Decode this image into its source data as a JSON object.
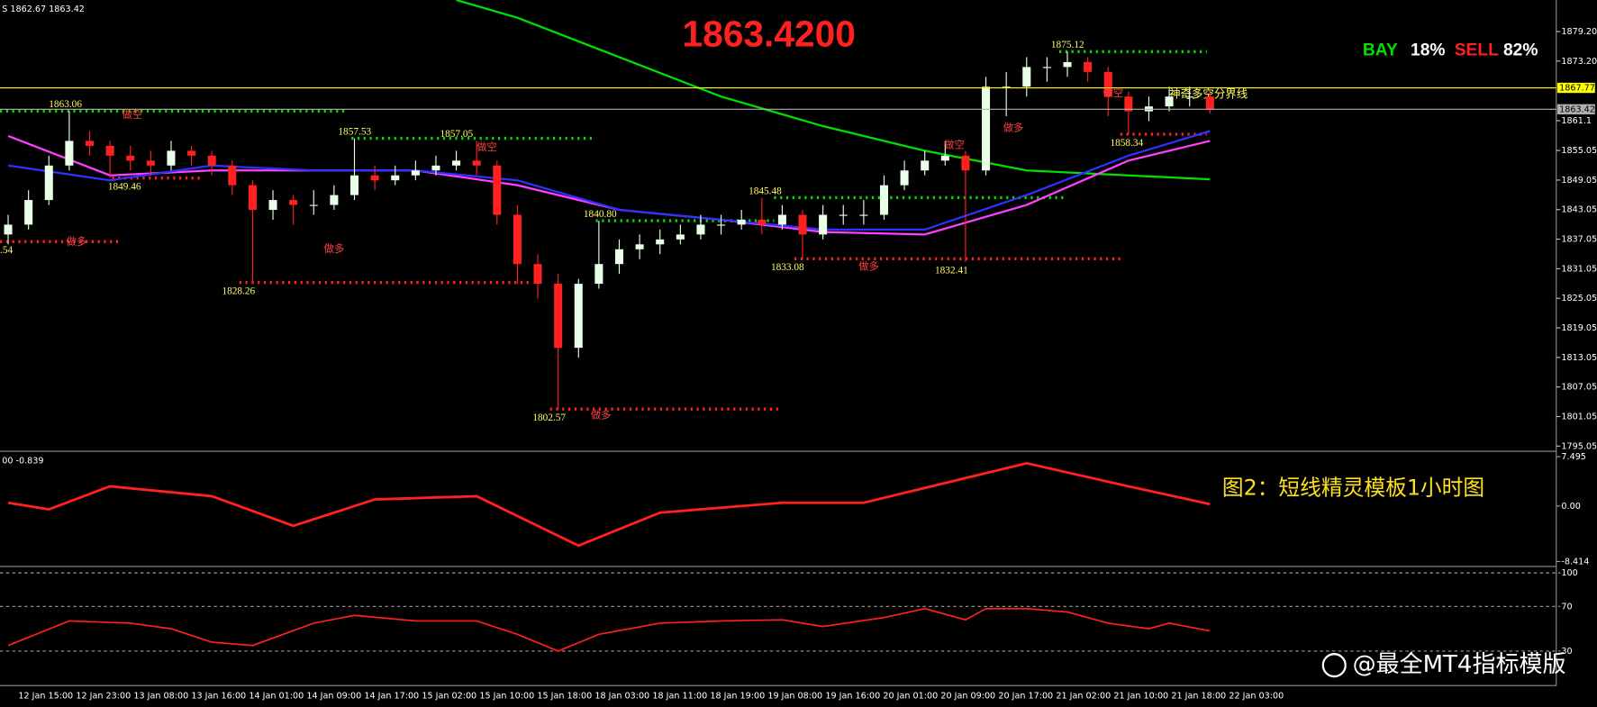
{
  "header": {
    "symbol_info": "S 1862.67 1863.42",
    "price": "1863.4200",
    "bay": "BAY",
    "bay_pct": "18%",
    "sell": "SELL",
    "sell_pct": "82%",
    "boundary": "神奇多空分界线",
    "caption": "图2：短线精灵模板1小时图",
    "watermark": "@最全MT4指标模版"
  },
  "chart_data": {
    "type": "candlestick",
    "open": [
      1838,
      1840,
      1845,
      1852,
      1857,
      1856,
      1854,
      1853,
      1852,
      1855,
      1854,
      1852,
      1848,
      1843,
      1845,
      1844,
      1844,
      1846,
      1850,
      1849,
      1850,
      1851,
      1852,
      1853,
      1852,
      1842,
      1832,
      1828,
      1815,
      1828,
      1832,
      1835,
      1836,
      1837,
      1838,
      1840,
      1840,
      1841,
      1840,
      1842,
      1838,
      1842,
      1842,
      1842,
      1848,
      1851,
      1853,
      1854,
      1851,
      1868,
      1868,
      1872,
      1872,
      1873,
      1871,
      1866,
      1863,
      1864,
      1866,
      1866
    ],
    "high": [
      1842,
      1847,
      1854,
      1863.06,
      1859,
      1857,
      1856,
      1855,
      1857,
      1856,
      1855,
      1853,
      1849,
      1847,
      1846,
      1847,
      1848,
      1857.53,
      1852,
      1852,
      1853,
      1854,
      1855,
      1857.05,
      1853,
      1844,
      1834,
      1830,
      1829,
      1840.8,
      1837,
      1838,
      1839,
      1840,
      1842,
      1842,
      1843,
      1845.48,
      1844,
      1843,
      1844,
      1844,
      1845,
      1850,
      1853,
      1855,
      1857,
      1855,
      1870,
      1871,
      1874,
      1874,
      1875.12,
      1874,
      1872,
      1867,
      1866,
      1868,
      1868,
      1867
    ],
    "low": [
      1836,
      1839,
      1844,
      1851,
      1854,
      1849.46,
      1851,
      1850,
      1851,
      1852,
      1850,
      1846,
      1828.26,
      1841,
      1840,
      1842,
      1843,
      1845,
      1847,
      1848,
      1849,
      1850,
      1851,
      1850,
      1840,
      1828,
      1825,
      1802.57,
      1813,
      1827,
      1830,
      1833,
      1834,
      1836,
      1837,
      1838,
      1839,
      1838,
      1839,
      1833.08,
      1837,
      1840,
      1840,
      1841,
      1847,
      1850,
      1852,
      1832.41,
      1850,
      1862,
      1866,
      1869,
      1870,
      1869,
      1862,
      1858.34,
      1861,
      1863,
      1864,
      1862.5
    ],
    "close": [
      1840,
      1845,
      1852,
      1857,
      1856,
      1854,
      1853,
      1852,
      1855,
      1854,
      1852,
      1848,
      1843,
      1845,
      1844,
      1844,
      1846,
      1850,
      1849,
      1850,
      1851,
      1852,
      1853,
      1852,
      1842,
      1832,
      1828,
      1815,
      1828,
      1832,
      1835,
      1836,
      1837,
      1838,
      1840,
      1840,
      1841,
      1840,
      1842,
      1838,
      1842,
      1842,
      1842,
      1848,
      1851,
      1853,
      1854,
      1851,
      1868,
      1868,
      1872,
      1872,
      1873,
      1871,
      1866,
      1863,
      1864,
      1866,
      1866,
      1863.42
    ],
    "up_color": "#e8ffe8",
    "down_color": "#ff2020",
    "ylim": [
      1794.2,
      1885.6
    ],
    "yticks": [
      {
        "value": 1879.2,
        "label": "1879.20"
      },
      {
        "value": 1873.2,
        "label": "1873.20"
      },
      1861.1,
      1855.05,
      1849.05,
      1843.05,
      1837.05,
      1831.05,
      1825.05,
      1819.05,
      1813.05,
      1807.05,
      1801.05,
      1795.05
    ],
    "price_lines": [
      {
        "value": 1867.77,
        "label": "1867.77",
        "color": "#ffff00"
      },
      {
        "value": 1863.42,
        "label": "1863.42",
        "color": "#b0b0b0"
      }
    ],
    "lines": [
      {
        "color": "#00e000",
        "x": [
          22,
          25,
          30,
          35,
          40,
          45,
          50,
          55,
          59
        ],
        "values": [
          1885.6,
          1882,
          1874,
          1866,
          1860,
          1855,
          1851,
          1850,
          1849.2
        ]
      },
      {
        "color": "#ff40ff",
        "x": [
          0,
          5,
          10,
          15,
          20,
          25,
          30,
          35,
          40,
          45,
          50,
          55,
          59
        ],
        "values": [
          1858,
          1850,
          1851,
          1851,
          1851,
          1848,
          1843,
          1841,
          1838.5,
          1838,
          1844,
          1853,
          1857
        ]
      },
      {
        "color": "#3030ff",
        "x": [
          0,
          5,
          10,
          15,
          20,
          25,
          30,
          35,
          40,
          45,
          50,
          55,
          59
        ],
        "values": [
          1852,
          1849,
          1852,
          1851,
          1851,
          1849,
          1843,
          1841,
          1839,
          1839,
          1846,
          1854,
          1859
        ]
      }
    ],
    "levels": [
      {
        "value": 1863.06,
        "label": "1863.06",
        "color": "#00dd00"
      },
      {
        "value": 1849.46,
        "label": "1849.46",
        "color": "#ff2020"
      },
      {
        "value": 1828.26,
        "label": "1828.26",
        "color": "#ff2020"
      },
      {
        "value": 1857.53,
        "label": "1857.53",
        "color": "#00dd00"
      },
      {
        "value": 1857.05,
        "label": "1857.05",
        "color": "#00dd00"
      },
      {
        "value": 1840.8,
        "label": "1840.80",
        "color": "#00dd00"
      },
      {
        "value": 1845.48,
        "label": "1845.48",
        "color": "#00dd00"
      },
      {
        "value": 1833.08,
        "label": "1833.08",
        "color": "#ff2020"
      },
      {
        "value": 1832.41,
        "label": "1832.41",
        "color": "#ff2020"
      },
      {
        "value": 1875.12,
        "label": "1875.12",
        "color": "#00dd00"
      },
      {
        "value": 1858.34,
        "label": "1858.34",
        "color": "#ff2020"
      },
      {
        "value": 1802.57,
        "label": "1802.57",
        "color": "#ff2020"
      },
      {
        "value": 1836.54,
        "label": ".54",
        "color": "#ff2020"
      }
    ],
    "signals": [
      "做空",
      "做多",
      "做多",
      "做空",
      "做多",
      "做多",
      "做空",
      "做多",
      "做空"
    ],
    "x_labels": [
      "12 Jan 15:00",
      "12 Jan 23:00",
      "13 Jan 08:00",
      "13 Jan 16:00",
      "14 Jan 01:00",
      "14 Jan 09:00",
      "14 Jan 17:00",
      "15 Jan 02:00",
      "15 Jan 10:00",
      "15 Jan 18:00",
      "18 Jan 03:00",
      "18 Jan 11:00",
      "18 Jan 19:00",
      "19 Jan 08:00",
      "19 Jan 16:00",
      "20 Jan 01:00",
      "20 Jan 09:00",
      "20 Jan 17:00",
      "21 Jan 02:00",
      "21 Jan 10:00",
      "21 Jan 18:00",
      "22 Jan 03:00"
    ]
  },
  "macd": {
    "title": "00 -0.839",
    "color": "#ff2020",
    "ylim": [
      -9,
      8
    ],
    "yticks": [
      7.495,
      {
        "value": 0,
        "label": "0.00"
      },
      -8.414
    ],
    "x": [
      0,
      2,
      5,
      10,
      14,
      18,
      23,
      28,
      32,
      38,
      42,
      50,
      55,
      59
    ],
    "values": [
      0.5,
      -0.5,
      3,
      1.5,
      -3,
      1,
      1.5,
      -6,
      -1,
      0.5,
      0.5,
      6.5,
      3,
      0.3
    ]
  },
  "rsi": {
    "color": "#ff2020",
    "ylim": [
      0,
      104
    ],
    "yticks": [
      100,
      70,
      30
    ],
    "x": [
      0,
      3,
      6,
      8,
      10,
      12,
      15,
      17,
      20,
      23,
      25,
      27,
      29,
      32,
      35,
      38,
      40,
      43,
      45,
      47,
      48,
      50,
      52,
      54,
      56,
      57,
      59
    ],
    "values": [
      35,
      57,
      55,
      50,
      38,
      35,
      55,
      62,
      57,
      57,
      45,
      30,
      45,
      55,
      57,
      58,
      52,
      60,
      68,
      58,
      68,
      68,
      65,
      55,
      50,
      55,
      48
    ]
  }
}
